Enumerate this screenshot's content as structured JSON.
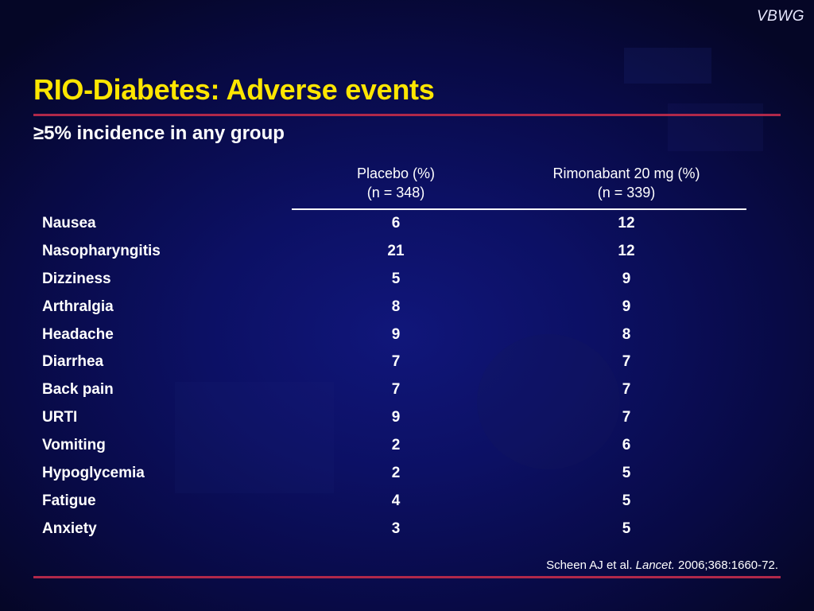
{
  "brand": "VBWG",
  "title": "RIO-Diabetes: Adverse events",
  "subtitle": "≥5% incidence in any group",
  "table": {
    "columns": [
      {
        "line1": "Placebo (%)",
        "line2": "(n = 348)"
      },
      {
        "line1": "Rimonabant 20 mg (%)",
        "line2": "(n = 339)"
      }
    ],
    "rows": [
      {
        "event": "Nausea",
        "placebo": "6",
        "rimonabant": "12"
      },
      {
        "event": "Nasopharyngitis",
        "placebo": "21",
        "rimonabant": "12"
      },
      {
        "event": "Dizziness",
        "placebo": "5",
        "rimonabant": "9"
      },
      {
        "event": "Arthralgia",
        "placebo": "8",
        "rimonabant": "9"
      },
      {
        "event": "Headache",
        "placebo": "9",
        "rimonabant": "8"
      },
      {
        "event": "Diarrhea",
        "placebo": "7",
        "rimonabant": "7"
      },
      {
        "event": "Back pain",
        "placebo": "7",
        "rimonabant": "7"
      },
      {
        "event": "URTI",
        "placebo": "9",
        "rimonabant": "7"
      },
      {
        "event": "Vomiting",
        "placebo": "2",
        "rimonabant": "6"
      },
      {
        "event": "Hypoglycemia",
        "placebo": "2",
        "rimonabant": "5"
      },
      {
        "event": "Fatigue",
        "placebo": "4",
        "rimonabant": "5"
      },
      {
        "event": "Anxiety",
        "placebo": "3",
        "rimonabant": "5"
      }
    ]
  },
  "citation": {
    "authors": "Scheen AJ et al.",
    "journal": "Lancet.",
    "details": "2006;368:1660-72."
  },
  "colors": {
    "title": "#ffe600",
    "rule": "#b0284a",
    "background": "#0c1064",
    "text": "#ffffff"
  }
}
